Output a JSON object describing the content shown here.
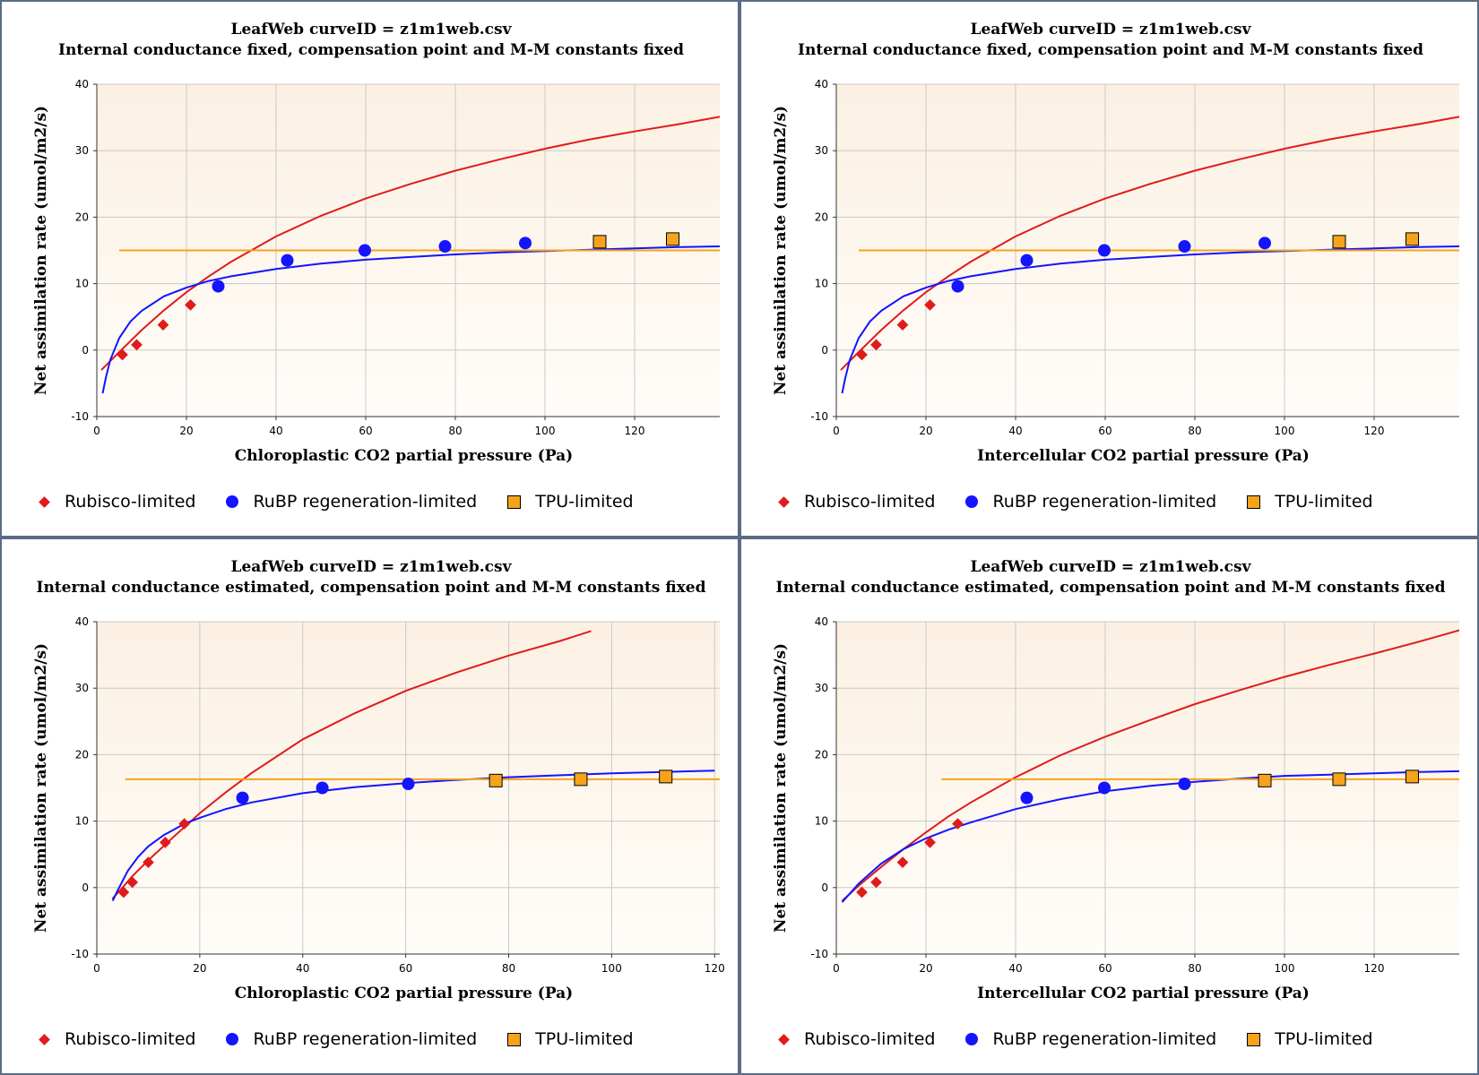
{
  "colors": {
    "rubisco": "#e01b1b",
    "rubp": "#1414ff",
    "tpu": "#f5a31b",
    "plot_bg_top": "#fbf0e2",
    "plot_bg_bottom": "#fffdf9",
    "grid": "#c9c9c9",
    "border": "#5b6b85"
  },
  "legend": {
    "rubisco": "Rubisco-limited",
    "rubp": "RuBP regeneration-limited",
    "tpu": "TPU-limited"
  },
  "chart_data": [
    {
      "type": "scatter",
      "title": "LeafWeb curveID = z1m1web.csv",
      "subtitle": "Internal conductance fixed, compensation point and M-M constants fixed",
      "xlabel": "Chloroplastic CO2 partial pressure (Pa)",
      "ylabel": "Net assimilation rate (umol/m2/s)",
      "xlim": [
        0,
        139
      ],
      "ylim": [
        -10,
        40
      ],
      "xticks": [
        0,
        20,
        40,
        60,
        80,
        100,
        120
      ],
      "yticks": [
        -10,
        0,
        10,
        20,
        30,
        40
      ],
      "grid": true,
      "series": [
        {
          "name": "Rubisco-limited",
          "marker": "diamond",
          "x": [
            5.7,
            8.9,
            14.8,
            20.9
          ],
          "y": [
            -0.7,
            0.8,
            3.8,
            6.8
          ]
        },
        {
          "name": "RuBP regeneration-limited",
          "marker": "circle",
          "x": [
            27.1,
            42.5,
            59.8,
            77.7,
            95.6
          ],
          "y": [
            9.6,
            13.5,
            15.0,
            15.6,
            16.1
          ]
        },
        {
          "name": "TPU-limited",
          "marker": "square",
          "x": [
            112.2,
            128.5
          ],
          "y": [
            16.3,
            16.7
          ]
        }
      ],
      "curves": [
        {
          "name": "Rubisco-limited",
          "x": [
            1,
            5,
            10,
            15,
            20,
            25,
            30,
            40,
            50,
            60,
            70,
            80,
            90,
            100,
            110,
            120,
            130,
            139
          ],
          "y": [
            -3.0,
            -0.3,
            3.0,
            6.0,
            8.7,
            11.1,
            13.3,
            17.1,
            20.2,
            22.8,
            25.0,
            27.0,
            28.7,
            30.3,
            31.7,
            32.9,
            34.0,
            35.1
          ]
        },
        {
          "name": "RuBP regeneration-limited",
          "x": [
            1.3,
            2,
            3,
            5,
            7.5,
            10,
            15,
            20,
            25,
            30,
            40,
            50,
            60,
            70,
            80,
            90,
            100,
            110,
            120,
            130,
            139
          ],
          "y": [
            -6.5,
            -4.2,
            -1.5,
            1.8,
            4.3,
            5.9,
            8.1,
            9.4,
            10.4,
            11.1,
            12.2,
            13.0,
            13.6,
            14.0,
            14.4,
            14.7,
            14.9,
            15.1,
            15.3,
            15.5,
            15.6
          ]
        },
        {
          "name": "TPU-limited",
          "x": [
            5,
            139
          ],
          "y": [
            15.0,
            15.0
          ]
        }
      ]
    },
    {
      "type": "scatter",
      "title": "LeafWeb curveID = z1m1web.csv",
      "subtitle": "Internal conductance fixed, compensation point and M-M constants fixed",
      "xlabel": "Intercellular CO2 partial pressure (Pa)",
      "ylabel": "Net assimilation rate (umol/m2/s)",
      "xlim": [
        0,
        139
      ],
      "ylim": [
        -10,
        40
      ],
      "xticks": [
        0,
        20,
        40,
        60,
        80,
        100,
        120
      ],
      "yticks": [
        -10,
        0,
        10,
        20,
        30,
        40
      ],
      "grid": true,
      "series": [
        {
          "name": "Rubisco-limited",
          "marker": "diamond",
          "x": [
            5.7,
            8.9,
            14.8,
            20.9
          ],
          "y": [
            -0.7,
            0.8,
            3.8,
            6.8
          ]
        },
        {
          "name": "RuBP regeneration-limited",
          "marker": "circle",
          "x": [
            27.1,
            42.5,
            59.8,
            77.7,
            95.6
          ],
          "y": [
            9.6,
            13.5,
            15.0,
            15.6,
            16.1
          ]
        },
        {
          "name": "TPU-limited",
          "marker": "square",
          "x": [
            112.2,
            128.5
          ],
          "y": [
            16.3,
            16.7
          ]
        }
      ],
      "curves": [
        {
          "name": "Rubisco-limited",
          "x": [
            1,
            5,
            10,
            15,
            20,
            25,
            30,
            40,
            50,
            60,
            70,
            80,
            90,
            100,
            110,
            120,
            130,
            139
          ],
          "y": [
            -3.0,
            -0.3,
            3.0,
            6.0,
            8.7,
            11.1,
            13.3,
            17.1,
            20.2,
            22.8,
            25.0,
            27.0,
            28.7,
            30.3,
            31.7,
            32.9,
            34.0,
            35.1
          ]
        },
        {
          "name": "RuBP regeneration-limited",
          "x": [
            1.3,
            2,
            3,
            5,
            7.5,
            10,
            15,
            20,
            25,
            30,
            40,
            50,
            60,
            70,
            80,
            90,
            100,
            110,
            120,
            130,
            139
          ],
          "y": [
            -6.5,
            -4.2,
            -1.5,
            1.8,
            4.3,
            5.9,
            8.1,
            9.4,
            10.4,
            11.1,
            12.2,
            13.0,
            13.6,
            14.0,
            14.4,
            14.7,
            14.9,
            15.1,
            15.3,
            15.5,
            15.6
          ]
        },
        {
          "name": "TPU-limited",
          "x": [
            5,
            139
          ],
          "y": [
            15.0,
            15.0
          ]
        }
      ]
    },
    {
      "type": "scatter",
      "title": "LeafWeb curveID = z1m1web.csv",
      "subtitle": "Internal conductance estimated, compensation point and M-M constants fixed",
      "xlabel": "Chloroplastic CO2 partial pressure (Pa)",
      "ylabel": "Net assimilation rate (umol/m2/s)",
      "xlim": [
        0,
        121
      ],
      "ylim": [
        -10,
        40
      ],
      "xticks": [
        0,
        20,
        40,
        60,
        80,
        100,
        120
      ],
      "yticks": [
        -10,
        0,
        10,
        20,
        30,
        40
      ],
      "grid": true,
      "series": [
        {
          "name": "Rubisco-limited",
          "marker": "diamond",
          "x": [
            5.2,
            6.9,
            10.0,
            13.3,
            17.0
          ],
          "y": [
            -0.7,
            0.8,
            3.8,
            6.8,
            9.6
          ]
        },
        {
          "name": "RuBP regeneration-limited",
          "marker": "circle",
          "x": [
            28.3,
            43.8,
            60.5
          ],
          "y": [
            13.5,
            15.0,
            15.6
          ]
        },
        {
          "name": "TPU-limited",
          "marker": "square",
          "x": [
            77.5,
            94.0,
            110.5
          ],
          "y": [
            16.1,
            16.3,
            16.7
          ]
        }
      ],
      "curves": [
        {
          "name": "Rubisco-limited",
          "x": [
            3,
            5,
            7,
            10,
            15,
            20,
            25,
            30,
            40,
            50,
            60,
            70,
            80,
            90,
            96
          ],
          "y": [
            -1.7,
            0.0,
            1.8,
            4.1,
            7.7,
            11.2,
            14.3,
            17.2,
            22.3,
            26.2,
            29.6,
            32.4,
            34.9,
            37.1,
            38.6
          ]
        },
        {
          "name": "RuBP regeneration-limited",
          "x": [
            3.1,
            4,
            6,
            8,
            10,
            13,
            17,
            20,
            25,
            30,
            40,
            50,
            60,
            70,
            80,
            90,
            100,
            110,
            120
          ],
          "y": [
            -2.0,
            -0.5,
            2.5,
            4.6,
            6.2,
            7.9,
            9.6,
            10.5,
            11.8,
            12.8,
            14.2,
            15.1,
            15.7,
            16.2,
            16.6,
            16.9,
            17.2,
            17.4,
            17.6
          ]
        },
        {
          "name": "TPU-limited",
          "x": [
            5.5,
            121
          ],
          "y": [
            16.3,
            16.3
          ]
        }
      ]
    },
    {
      "type": "scatter",
      "title": "LeafWeb curveID = z1m1web.csv",
      "subtitle": "Internal conductance estimated, compensation point and M-M constants fixed",
      "xlabel": "Intercellular CO2 partial pressure (Pa)",
      "ylabel": "Net assimilation rate (umol/m2/s)",
      "xlim": [
        0,
        139
      ],
      "ylim": [
        -10,
        40
      ],
      "xticks": [
        0,
        20,
        40,
        60,
        80,
        100,
        120
      ],
      "yticks": [
        -10,
        0,
        10,
        20,
        30,
        40
      ],
      "grid": true,
      "series": [
        {
          "name": "Rubisco-limited",
          "marker": "diamond",
          "x": [
            5.7,
            8.9,
            14.8,
            20.9,
            27.1
          ],
          "y": [
            -0.7,
            0.8,
            3.8,
            6.8,
            9.6
          ]
        },
        {
          "name": "RuBP regeneration-limited",
          "marker": "circle",
          "x": [
            42.5,
            59.8,
            77.7
          ],
          "y": [
            13.5,
            15.0,
            15.6
          ]
        },
        {
          "name": "TPU-limited",
          "marker": "square",
          "x": [
            95.6,
            112.2,
            128.5
          ],
          "y": [
            16.1,
            16.3,
            16.7
          ]
        }
      ],
      "curves": [
        {
          "name": "Rubisco-limited",
          "x": [
            1.3,
            5,
            10,
            15,
            20,
            25,
            30,
            40,
            50,
            60,
            70,
            80,
            90,
            100,
            110,
            120,
            130,
            139
          ],
          "y": [
            -2.0,
            0.3,
            3.1,
            5.8,
            8.3,
            10.7,
            12.8,
            16.6,
            19.9,
            22.7,
            25.2,
            27.6,
            29.7,
            31.7,
            33.5,
            35.2,
            37.0,
            38.7
          ]
        },
        {
          "name": "RuBP regeneration-limited",
          "x": [
            1.3,
            5,
            10,
            15,
            20,
            25,
            30,
            40,
            50,
            60,
            70,
            80,
            90,
            100,
            110,
            120,
            130,
            139
          ],
          "y": [
            -2.2,
            0.6,
            3.6,
            5.8,
            7.4,
            8.7,
            9.8,
            11.8,
            13.3,
            14.5,
            15.3,
            15.9,
            16.4,
            16.8,
            17.0,
            17.2,
            17.4,
            17.5
          ]
        },
        {
          "name": "TPU-limited",
          "x": [
            23.5,
            139
          ],
          "y": [
            16.3,
            16.3
          ]
        }
      ]
    }
  ]
}
